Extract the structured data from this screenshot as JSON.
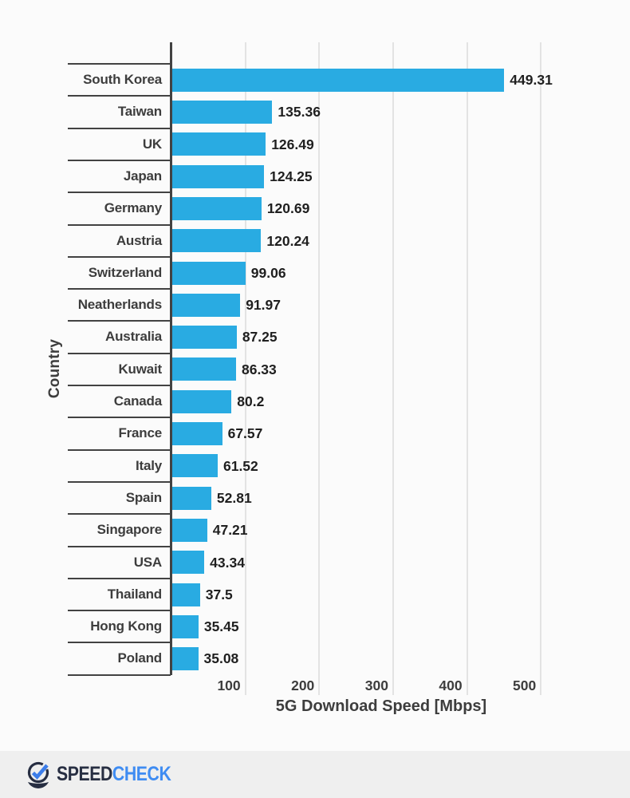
{
  "chart_data": {
    "type": "bar",
    "orientation": "horizontal",
    "xlabel": "5G Download Speed [Mbps]",
    "ylabel": "Country",
    "categories": [
      "South Korea",
      "Taiwan",
      "UK",
      "Japan",
      "Germany",
      "Austria",
      "Switzerland",
      "Neatherlands",
      "Australia",
      "Kuwait",
      "Canada",
      "France",
      "Italy",
      "Spain",
      "Singapore",
      "USA",
      "Thailand",
      "Hong Kong",
      "Poland"
    ],
    "values": [
      449.31,
      135.36,
      126.49,
      124.25,
      120.69,
      120.24,
      99.06,
      91.97,
      87.25,
      86.33,
      80.2,
      67.57,
      61.52,
      52.81,
      47.21,
      43.34,
      37.5,
      35.45,
      35.08
    ],
    "value_labels": [
      "449.31",
      "135.36",
      "126.49",
      "124.25",
      "120.69",
      "120.24",
      "99.06",
      "91.97",
      "87.25",
      "86.33",
      "80.2",
      "67.57",
      "61.52",
      "52.81",
      "47.21",
      "43.34",
      "37.5",
      "35.45",
      "35.08"
    ],
    "xticks": [
      "100",
      "200",
      "300",
      "400",
      "500"
    ],
    "xtick_values": [
      100,
      200,
      300,
      400,
      500
    ],
    "xlim": [
      0,
      520
    ],
    "grid": true,
    "legend_position": "none",
    "bar_color": "#29ABE2"
  },
  "colors": {
    "bar": "#29ABE2",
    "axis": "#424242",
    "gridline": "#E3E3E3",
    "category_text": "#3D3D3D",
    "value_text": "#1F1F1F",
    "page_background": "#FBFBFB",
    "footer_background": "#EFEFEF"
  },
  "footer": {
    "brand_speed": "SPEED",
    "brand_check": "CHECK",
    "icon": "speedcheck-gauge-check-icon",
    "speed_color": "#272E42",
    "check_color": "#3F8CF2"
  }
}
